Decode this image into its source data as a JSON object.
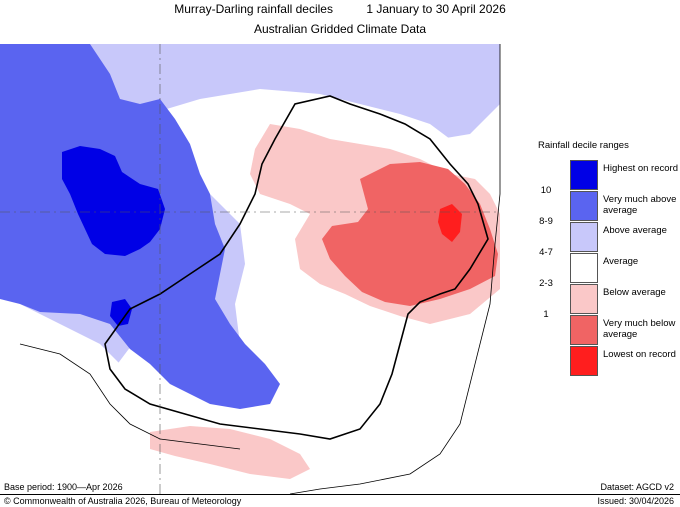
{
  "header": {
    "title": "Murray-Darling rainfall deciles",
    "period": "1 January to 30 April 2026",
    "subtitle": "Australian Gridded Climate Data"
  },
  "legend": {
    "title": "Rainfall decile ranges",
    "items": [
      {
        "label": "Highest on record",
        "range": "",
        "color": "#0000e6"
      },
      {
        "label": "Very much above average",
        "range": "10",
        "color": "#5a64f0"
      },
      {
        "label": "Above average",
        "range": "8-9",
        "color": "#c8c8fa"
      },
      {
        "label": "Average",
        "range": "4-7",
        "color": "#ffffff"
      },
      {
        "label": "Below average",
        "range": "2-3",
        "color": "#fac8c8"
      },
      {
        "label": "Very much below average",
        "range": "1",
        "color": "#f06464"
      },
      {
        "label": "Lowest on record",
        "range": "",
        "color": "#ff1e1e"
      }
    ]
  },
  "footer": {
    "base_period": "Base period: 1900—Apr 2026",
    "dataset": "Dataset: AGCD v2",
    "copyright": "© Commonwealth of Australia 2026, Bureau of Meteorology",
    "issued": "Issued: 30/04/2026"
  },
  "map": {
    "ocean_color": "#ffffff",
    "basin_outline_color": "#000000",
    "coastline_color": "#000000"
  }
}
